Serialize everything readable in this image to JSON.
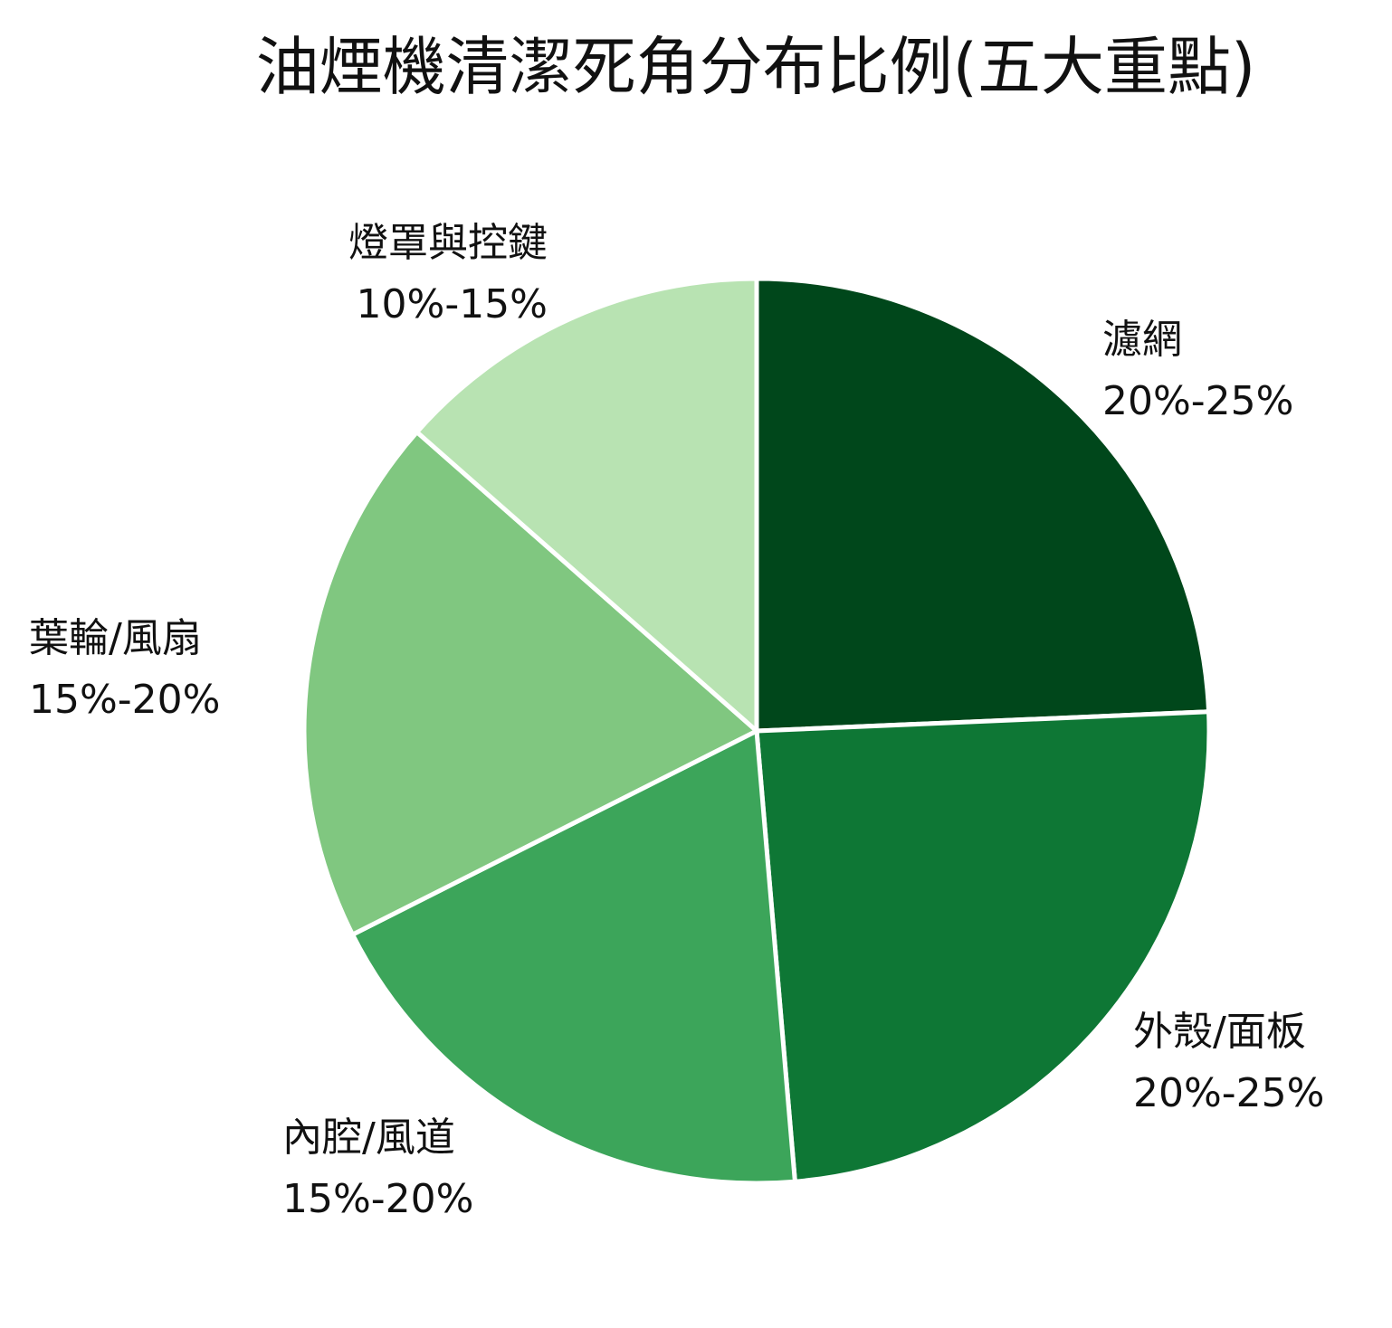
{
  "chart_data": {
    "type": "pie",
    "title": "油煙機清潔死角分布比例(五大重點)",
    "slices": [
      {
        "name": "濾網",
        "range": "20%-25%",
        "value": 22.5,
        "color": "#00471b"
      },
      {
        "name": "外殼/面板",
        "range": "20%-25%",
        "value": 22.5,
        "color": "#0e7735"
      },
      {
        "name": "內腔/風道",
        "range": "15%-20%",
        "value": 17.5,
        "color": "#3ca55a"
      },
      {
        "name": "葉輪/風扇",
        "range": "15%-20%",
        "value": 17.5,
        "color": "#80c780"
      },
      {
        "name": "燈罩與控鍵",
        "range": "10%-15%",
        "value": 12.5,
        "color": "#b8e3b2"
      }
    ],
    "start": "12 o'clock",
    "direction": "clockwise",
    "legend": "none"
  }
}
